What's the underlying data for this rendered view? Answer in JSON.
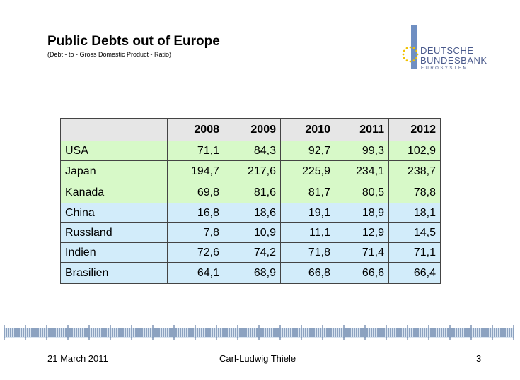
{
  "header": {
    "title": "Public Debts out of Europe",
    "subtitle": "(Debt - to - Gross Domestic  Product  - Ratio)"
  },
  "logo": {
    "line1": "DEUTSCHE",
    "line2": "BUNDESBANK",
    "line3": "EUROSYSTEM"
  },
  "table": {
    "columns": [
      "2008",
      "2009",
      "2010",
      "2011",
      "2012"
    ],
    "rows": [
      {
        "name": "USA",
        "group": "green",
        "values": [
          "71,1",
          "84,3",
          "92,7",
          "99,3",
          "102,9"
        ]
      },
      {
        "name": "Japan",
        "group": "green",
        "values": [
          "194,7",
          "217,6",
          "225,9",
          "234,1",
          "238,7"
        ]
      },
      {
        "name": "Kanada",
        "group": "green",
        "values": [
          "69,8",
          "81,6",
          "81,7",
          "80,5",
          "78,8"
        ]
      },
      {
        "name": "China",
        "group": "blue",
        "values": [
          "16,8",
          "18,6",
          "19,1",
          "18,9",
          "18,1"
        ]
      },
      {
        "name": "Russland",
        "group": "blue",
        "values": [
          "7,8",
          "10,9",
          "11,1",
          "12,9",
          "14,5"
        ]
      },
      {
        "name": "Indien",
        "group": "blue",
        "values": [
          "72,6",
          "74,2",
          "71,8",
          "71,4",
          "71,1"
        ]
      },
      {
        "name": "Brasilien",
        "group": "blue",
        "values": [
          "64,1",
          "68,9",
          "66,8",
          "66,6",
          "66,4"
        ]
      }
    ]
  },
  "colors": {
    "green_row": "#d7f9c8",
    "blue_row": "#d2ecfa",
    "header_row": "#e6e6e6",
    "logo_blue": "#4a5a8c",
    "star_yellow": "#f2c200"
  },
  "footer": {
    "date": "21 March 2011",
    "author": "Carl-Ludwig Thiele",
    "page": "3"
  }
}
